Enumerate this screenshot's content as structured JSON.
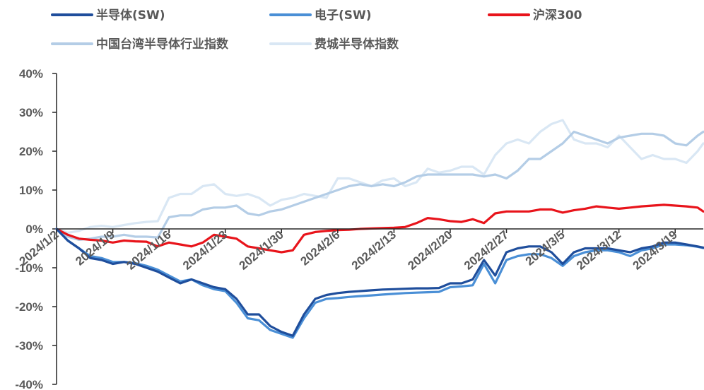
{
  "chart_data": {
    "type": "line",
    "title": "",
    "xlabel": "",
    "ylabel": "",
    "ylim": [
      -40,
      40
    ],
    "yticks": [
      "40%",
      "30%",
      "20%",
      "10%",
      "0%",
      "-10%",
      "-20%",
      "-30%",
      "-40%"
    ],
    "xtick_labels": [
      "2024/1/2",
      "2024/1/9",
      "2024/1/16",
      "2024/1/23",
      "2024/1/30",
      "2024/2/6",
      "2024/2/13",
      "2024/2/20",
      "2024/2/27",
      "2024/3/5",
      "2024/3/12",
      "2024/3/19"
    ],
    "grid": false,
    "legend_position": "top",
    "series": [
      {
        "name": "半导体(SW)",
        "color": "#1f4e9c",
        "x": [
          0,
          2,
          4,
          6,
          8,
          10,
          12,
          14,
          16,
          18,
          20,
          22,
          24,
          26,
          28,
          30,
          32,
          34,
          36,
          38,
          40,
          42,
          44,
          46,
          48,
          50,
          52,
          54,
          56,
          58,
          60,
          62,
          64,
          66,
          68,
          70,
          72,
          74,
          76,
          78,
          80,
          82,
          84,
          86,
          88,
          90,
          92,
          94,
          96,
          98,
          100,
          102,
          104,
          106,
          108,
          110,
          112,
          114,
          115
        ],
        "values": [
          0,
          -3,
          -5,
          -7.5,
          -8,
          -9,
          -8.5,
          -9,
          -10,
          -11,
          -12.5,
          -14,
          -13,
          -14,
          -15,
          -15.5,
          -18,
          -22,
          -22,
          -25,
          -26.5,
          -27.5,
          -22,
          -18,
          -17,
          -16.5,
          -16.2,
          -16,
          -15.8,
          -15.6,
          -15.5,
          -15.4,
          -15.3,
          -15.3,
          -15.2,
          -14,
          -14,
          -13,
          -8,
          -12,
          -6,
          -5,
          -4.5,
          -4.5,
          -6,
          -9,
          -6,
          -5,
          -5,
          -5,
          -5.5,
          -6,
          -5,
          -4.5,
          -3.5,
          -3.5,
          -4,
          -4.5,
          -4.8
        ]
      },
      {
        "name": "电子(SW)",
        "color": "#4a8fd6",
        "x": [
          0,
          2,
          4,
          6,
          8,
          10,
          12,
          14,
          16,
          18,
          20,
          22,
          24,
          26,
          28,
          30,
          32,
          34,
          36,
          38,
          40,
          42,
          44,
          46,
          48,
          50,
          52,
          54,
          56,
          58,
          60,
          62,
          64,
          66,
          68,
          70,
          72,
          74,
          76,
          78,
          80,
          82,
          84,
          86,
          88,
          90,
          92,
          94,
          96,
          98,
          100,
          102,
          104,
          106,
          108,
          110,
          112,
          114,
          115
        ],
        "values": [
          0,
          -3,
          -5,
          -7,
          -7.5,
          -8.5,
          -8.5,
          -8.8,
          -9.5,
          -10.5,
          -12,
          -13.5,
          -13,
          -14.5,
          -15.5,
          -16,
          -19,
          -23,
          -23.5,
          -26,
          -27,
          -28,
          -23,
          -19,
          -18,
          -17.8,
          -17.5,
          -17.3,
          -17.1,
          -16.9,
          -16.7,
          -16.5,
          -16.4,
          -16.3,
          -16.2,
          -15,
          -14.8,
          -14.5,
          -9,
          -14,
          -8,
          -7,
          -6.5,
          -6.5,
          -7.5,
          -9.5,
          -7,
          -6,
          -5.5,
          -5.5,
          -6,
          -7,
          -5.5,
          -5,
          -4,
          -4,
          -4.2,
          -4.6,
          -4.9
        ]
      },
      {
        "name": "沪深300",
        "color": "#e8141b",
        "x": [
          0,
          2,
          4,
          6,
          8,
          10,
          12,
          14,
          16,
          18,
          20,
          22,
          24,
          26,
          28,
          30,
          32,
          34,
          36,
          38,
          40,
          42,
          44,
          46,
          48,
          50,
          52,
          54,
          56,
          58,
          60,
          62,
          64,
          66,
          68,
          70,
          72,
          74,
          76,
          78,
          80,
          82,
          84,
          86,
          88,
          90,
          92,
          94,
          96,
          98,
          100,
          102,
          104,
          106,
          108,
          110,
          112,
          114,
          115
        ],
        "values": [
          0,
          -1.5,
          -2.5,
          -2.8,
          -3,
          -3.5,
          -3,
          -3.2,
          -3.3,
          -4.5,
          -3.5,
          -4,
          -4.5,
          -3.5,
          -1.5,
          -2,
          -2.5,
          -4.5,
          -5,
          -5.5,
          -6,
          -5.5,
          -1.5,
          -0.8,
          -0.5,
          -0.3,
          -0.2,
          0,
          0.1,
          0.2,
          0.3,
          0.5,
          1.5,
          2.8,
          2.5,
          2,
          1.8,
          2.5,
          1.5,
          4,
          4.5,
          4.5,
          4.5,
          5,
          5,
          4.2,
          4.8,
          5.2,
          5.8,
          5.5,
          5.2,
          5.5,
          5.8,
          6,
          6.2,
          6,
          5.8,
          5.5,
          4.5
        ]
      },
      {
        "name": "中国台湾半导体行业指数",
        "color": "#b4cde6",
        "x": [
          0,
          2,
          4,
          6,
          8,
          10,
          12,
          14,
          16,
          18,
          20,
          22,
          24,
          26,
          28,
          30,
          32,
          34,
          36,
          38,
          40,
          42,
          44,
          46,
          48,
          50,
          52,
          54,
          56,
          58,
          60,
          62,
          64,
          66,
          68,
          70,
          72,
          74,
          76,
          78,
          80,
          82,
          84,
          86,
          88,
          90,
          92,
          94,
          96,
          98,
          100,
          102,
          104,
          106,
          108,
          110,
          112,
          114,
          115
        ],
        "values": [
          0,
          -2,
          -2.8,
          -2.5,
          -2,
          -2,
          -1.5,
          -2,
          -2,
          -2.2,
          3,
          3.5,
          3.5,
          5,
          5.5,
          5.5,
          6,
          4,
          3.5,
          4.5,
          5,
          6,
          7,
          8,
          9,
          10,
          11,
          11.5,
          11,
          11.5,
          11,
          12,
          13.5,
          14,
          14,
          14,
          14,
          14,
          13.5,
          14,
          13,
          15,
          18,
          18,
          20,
          22,
          25,
          24,
          23,
          22,
          23.5,
          24,
          24.5,
          24.5,
          24,
          22,
          21.5,
          24,
          25
        ]
      },
      {
        "name": "费城半导体指数",
        "color": "#d9e7f4",
        "x": [
          0,
          2,
          4,
          6,
          8,
          10,
          12,
          14,
          16,
          18,
          20,
          22,
          24,
          26,
          28,
          30,
          32,
          34,
          36,
          38,
          40,
          42,
          44,
          46,
          48,
          50,
          52,
          54,
          56,
          58,
          60,
          62,
          64,
          66,
          68,
          70,
          72,
          74,
          76,
          78,
          80,
          82,
          84,
          86,
          88,
          90,
          92,
          94,
          96,
          98,
          100,
          102,
          104,
          106,
          108,
          110,
          112,
          114,
          115
        ],
        "values": [
          0,
          -1,
          -0.5,
          0.5,
          0.8,
          0.5,
          1,
          1.5,
          1.8,
          2,
          8,
          9,
          9,
          11,
          11.5,
          9,
          8.5,
          9,
          8,
          6,
          7.5,
          8,
          9,
          8.5,
          8,
          13,
          13,
          12,
          11,
          12.5,
          13,
          11,
          12,
          15.5,
          14.5,
          15,
          16,
          16,
          14,
          19,
          22,
          23,
          22,
          25,
          27,
          28,
          23,
          22,
          22,
          21,
          24,
          21,
          18,
          19,
          18,
          18,
          17,
          20,
          22
        ]
      }
    ]
  }
}
